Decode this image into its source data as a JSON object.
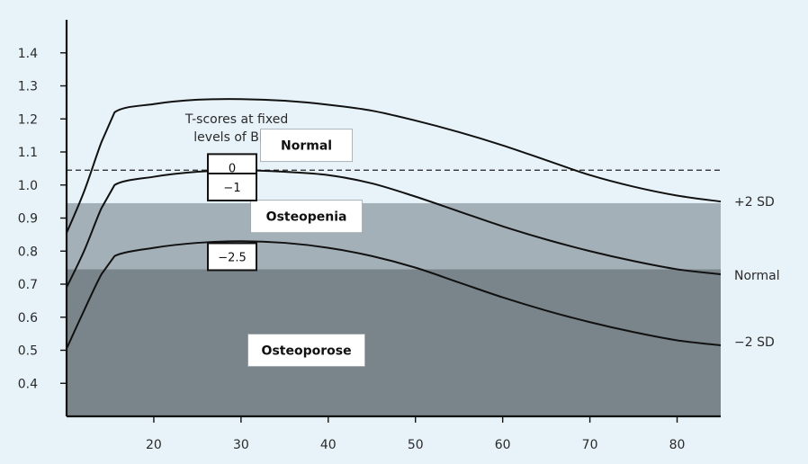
{
  "chart_data": {
    "type": "line",
    "x_ticks": [
      "20",
      "30",
      "40",
      "50",
      "60",
      "70",
      "80"
    ],
    "y_ticks": [
      "0.4",
      "0.5",
      "0.6",
      "0.7",
      "0.8",
      "0.9",
      "1.0",
      "1.1",
      "1.2",
      "1.3",
      "1.4"
    ],
    "xlim": [
      10,
      85
    ],
    "ylim": [
      0.3,
      1.5
    ],
    "grid": false,
    "zones": [
      {
        "label": "Normal",
        "y_from": 0.945,
        "y_to": 1.5,
        "color": "#e8f3f9",
        "label_x": 37.5,
        "label_y": 1.12
      },
      {
        "label": "Osteopenia",
        "y_from": 0.745,
        "y_to": 0.945,
        "color": "#a4b0b7",
        "label_x": 37.5,
        "label_y": 0.905
      },
      {
        "label": "Osteoporose",
        "y_from": 0.3,
        "y_to": 0.745,
        "color": "#7a858b",
        "label_x": 37.5,
        "label_y": 0.5
      }
    ],
    "reference_line": {
      "y": 1.045,
      "style": "dashed"
    },
    "series": [
      {
        "name": "+2 SD",
        "x": [
          10,
          12,
          14,
          15.5,
          20,
          25,
          30,
          35,
          40,
          45,
          50,
          55,
          60,
          65,
          70,
          75,
          80,
          85
        ],
        "y": [
          0.855,
          0.98,
          1.13,
          1.22,
          1.245,
          1.258,
          1.26,
          1.255,
          1.243,
          1.225,
          1.195,
          1.16,
          1.12,
          1.075,
          1.03,
          0.995,
          0.968,
          0.95
        ]
      },
      {
        "name": "Normal",
        "x": [
          10,
          12,
          14,
          15.5,
          20,
          25,
          30,
          35,
          40,
          45,
          50,
          55,
          60,
          65,
          70,
          75,
          80,
          85
        ],
        "y": [
          0.69,
          0.8,
          0.93,
          1.0,
          1.025,
          1.04,
          1.045,
          1.04,
          1.03,
          1.005,
          0.965,
          0.92,
          0.875,
          0.835,
          0.8,
          0.77,
          0.745,
          0.73
        ]
      },
      {
        "name": "−2 SD",
        "x": [
          10,
          12,
          14,
          15.5,
          20,
          25,
          30,
          35,
          40,
          45,
          50,
          55,
          60,
          65,
          70,
          75,
          80,
          85
        ],
        "y": [
          0.505,
          0.62,
          0.73,
          0.785,
          0.81,
          0.825,
          0.83,
          0.825,
          0.81,
          0.785,
          0.75,
          0.705,
          0.66,
          0.62,
          0.585,
          0.555,
          0.53,
          0.515
        ]
      }
    ],
    "t_score_boxes": [
      {
        "label": "0",
        "x": 29.5,
        "y": 1.05
      },
      {
        "label": "−1",
        "x": 29.5,
        "y": 0.945
      },
      {
        "label": "−2.5",
        "x": 29.5,
        "y": 0.745
      }
    ],
    "annotation": {
      "line1": "T-scores at fixed",
      "line2": "levels of BMD",
      "x": 29.5
    },
    "end_labels": [
      {
        "text": "+2 SD",
        "series": 0
      },
      {
        "text": "Normal",
        "series": 1
      },
      {
        "text": "−2 SD",
        "series": 2
      }
    ]
  }
}
